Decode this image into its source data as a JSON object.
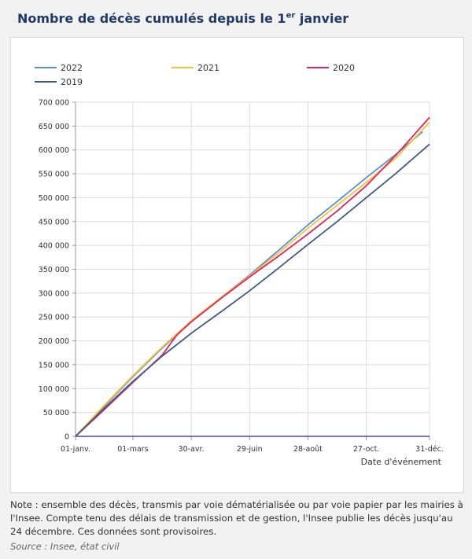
{
  "header": {
    "title_main": "Nombre de décès cumulés depuis le 1",
    "title_sup": "er",
    "title_end": " janvier"
  },
  "footer": {
    "note": "Note : ensemble des décès, transmis par voie dématérialisée ou par voie papier par les mairies à l'Insee. Compte tenu des délais de transmission et de gestion, l'Insee publie les décès jusqu'au 24 décembre. Ces données sont provisoires.",
    "source": "Source : Insee, état civil"
  },
  "chart_data": {
    "type": "line",
    "xlabel": "Date d'événement",
    "ylabel": "",
    "x_ticks": [
      {
        "label": "01-janv.",
        "day": 1
      },
      {
        "label": "01-mars",
        "day": 60
      },
      {
        "label": "30-avr.",
        "day": 120
      },
      {
        "label": "29-juin",
        "day": 180
      },
      {
        "label": "28-août",
        "day": 240
      },
      {
        "label": "27-oct.",
        "day": 300
      },
      {
        "label": "31-déc.",
        "day": 365
      }
    ],
    "xlim": [
      1,
      365
    ],
    "y_ticks": [
      "0",
      "50 000",
      "100 000",
      "150 000",
      "200 000",
      "250 000",
      "300 000",
      "350 000",
      "400 000",
      "450 000",
      "500 000",
      "550 000",
      "600 000",
      "650 000",
      "700 000"
    ],
    "ylim": [
      0,
      700000
    ],
    "grid": true,
    "legend_position": "top",
    "series": [
      {
        "name": "2022",
        "color": "#5b8fd1",
        "x": [
          1,
          30,
          60,
          90,
          120,
          150,
          180,
          210,
          240,
          270,
          300,
          330,
          358
        ],
        "y": [
          0,
          62000,
          125000,
          185000,
          240000,
          290000,
          338000,
          390000,
          443000,
          492000,
          542000,
          590000,
          638000
        ]
      },
      {
        "name": "2021",
        "color": "#f5c33b",
        "x": [
          1,
          30,
          60,
          90,
          120,
          150,
          180,
          210,
          240,
          270,
          300,
          330,
          365
        ],
        "y": [
          0,
          64000,
          127000,
          187000,
          242000,
          290000,
          336000,
          385000,
          436000,
          484000,
          532000,
          582000,
          658000
        ]
      },
      {
        "name": "2020",
        "color": "#e0245e",
        "x": [
          1,
          30,
          60,
          90,
          105,
          120,
          150,
          180,
          210,
          240,
          270,
          300,
          330,
          365
        ],
        "y": [
          0,
          55000,
          113000,
          170000,
          212000,
          240000,
          288000,
          334000,
          378000,
          424000,
          472000,
          525000,
          588000,
          668000
        ]
      },
      {
        "name": "2019",
        "color": "#3f5a87",
        "x": [
          1,
          30,
          60,
          90,
          120,
          150,
          180,
          210,
          240,
          270,
          300,
          330,
          365
        ],
        "y": [
          0,
          58000,
          115000,
          168000,
          216000,
          260000,
          305000,
          353000,
          402000,
          450000,
          500000,
          550000,
          612000
        ]
      }
    ]
  }
}
